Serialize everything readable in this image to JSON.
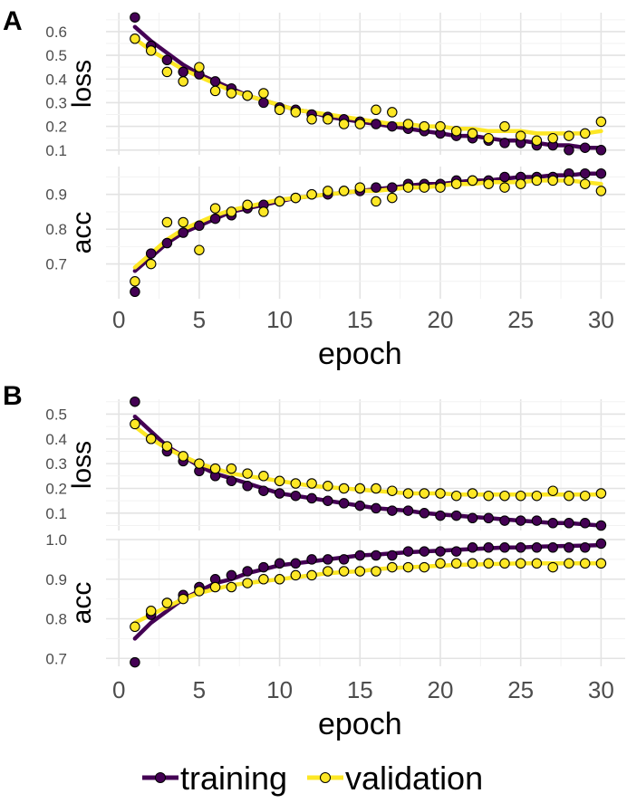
{
  "chart_data": [
    {
      "type": "scatter",
      "panel": "A",
      "xlabel": "epoch",
      "xticks": [
        0,
        5,
        10,
        15,
        20,
        25,
        30
      ],
      "xlim": [
        -0.8,
        31.5
      ],
      "series": [
        {
          "name": "training",
          "color": "#440154"
        },
        {
          "name": "validation",
          "color": "#FDE725"
        }
      ],
      "facets": [
        {
          "label": "loss",
          "ylim": [
            0.08,
            0.68
          ],
          "yticks": [
            0.1,
            0.2,
            0.3,
            0.4,
            0.5,
            0.6
          ],
          "ytick_labels": [
            "0.1",
            "0.2",
            "0.3",
            "0.4",
            "0.5",
            "0.6"
          ],
          "x": [
            1,
            2,
            3,
            4,
            5,
            6,
            7,
            8,
            9,
            10,
            11,
            12,
            13,
            14,
            15,
            16,
            17,
            18,
            19,
            20,
            21,
            22,
            23,
            24,
            25,
            26,
            27,
            28,
            29,
            30
          ],
          "training": [
            0.66,
            0.54,
            0.48,
            0.43,
            0.42,
            0.39,
            0.36,
            0.33,
            0.3,
            0.28,
            0.27,
            0.25,
            0.24,
            0.23,
            0.22,
            0.21,
            0.2,
            0.19,
            0.18,
            0.17,
            0.16,
            0.15,
            0.14,
            0.13,
            0.13,
            0.12,
            0.12,
            0.1,
            0.11,
            0.1
          ],
          "validation": [
            0.57,
            0.52,
            0.43,
            0.39,
            0.45,
            0.35,
            0.34,
            0.33,
            0.34,
            0.27,
            0.26,
            0.23,
            0.23,
            0.21,
            0.21,
            0.27,
            0.26,
            0.21,
            0.2,
            0.2,
            0.18,
            0.17,
            0.15,
            0.2,
            0.16,
            0.14,
            0.15,
            0.16,
            0.17,
            0.22
          ],
          "training_fit": [
            0.62,
            0.56,
            0.51,
            0.46,
            0.42,
            0.39,
            0.36,
            0.33,
            0.31,
            0.29,
            0.27,
            0.26,
            0.24,
            0.23,
            0.22,
            0.21,
            0.2,
            0.19,
            0.18,
            0.17,
            0.16,
            0.16,
            0.15,
            0.14,
            0.14,
            0.13,
            0.12,
            0.12,
            0.11,
            0.11
          ],
          "validation_fit": [
            0.57,
            0.52,
            0.48,
            0.44,
            0.41,
            0.38,
            0.35,
            0.33,
            0.31,
            0.29,
            0.27,
            0.26,
            0.25,
            0.24,
            0.23,
            0.22,
            0.21,
            0.21,
            0.2,
            0.2,
            0.19,
            0.19,
            0.18,
            0.18,
            0.18,
            0.17,
            0.17,
            0.17,
            0.17,
            0.18
          ]
        },
        {
          "label": "acc",
          "ylim": [
            0.6,
            0.98
          ],
          "yticks": [
            0.7,
            0.8,
            0.9
          ],
          "ytick_labels": [
            "0.7",
            "0.8",
            "0.9"
          ],
          "x": [
            1,
            2,
            3,
            4,
            5,
            6,
            7,
            8,
            9,
            10,
            11,
            12,
            13,
            14,
            15,
            16,
            17,
            18,
            19,
            20,
            21,
            22,
            23,
            24,
            25,
            26,
            27,
            28,
            29,
            30
          ],
          "training": [
            0.62,
            0.73,
            0.76,
            0.79,
            0.81,
            0.83,
            0.84,
            0.86,
            0.87,
            0.88,
            0.89,
            0.9,
            0.9,
            0.91,
            0.91,
            0.92,
            0.92,
            0.93,
            0.93,
            0.93,
            0.94,
            0.94,
            0.94,
            0.95,
            0.95,
            0.95,
            0.95,
            0.96,
            0.96,
            0.96
          ],
          "validation": [
            0.65,
            0.7,
            0.82,
            0.82,
            0.74,
            0.86,
            0.85,
            0.87,
            0.85,
            0.88,
            0.89,
            0.9,
            0.91,
            0.91,
            0.92,
            0.88,
            0.89,
            0.92,
            0.92,
            0.92,
            0.93,
            0.94,
            0.93,
            0.92,
            0.93,
            0.94,
            0.94,
            0.94,
            0.93,
            0.91
          ],
          "training_fit": [
            0.68,
            0.72,
            0.76,
            0.79,
            0.81,
            0.83,
            0.85,
            0.86,
            0.87,
            0.88,
            0.89,
            0.895,
            0.9,
            0.905,
            0.91,
            0.915,
            0.92,
            0.925,
            0.93,
            0.93,
            0.935,
            0.94,
            0.94,
            0.945,
            0.95,
            0.95,
            0.955,
            0.955,
            0.96,
            0.96
          ],
          "validation_fit": [
            0.69,
            0.73,
            0.77,
            0.8,
            0.82,
            0.84,
            0.855,
            0.865,
            0.875,
            0.885,
            0.89,
            0.895,
            0.9,
            0.905,
            0.91,
            0.91,
            0.915,
            0.92,
            0.92,
            0.925,
            0.93,
            0.93,
            0.935,
            0.935,
            0.935,
            0.94,
            0.94,
            0.94,
            0.935,
            0.93
          ]
        }
      ]
    },
    {
      "type": "scatter",
      "panel": "B",
      "xlabel": "epoch",
      "xticks": [
        0,
        5,
        10,
        15,
        20,
        25,
        30
      ],
      "xlim": [
        -0.8,
        31.5
      ],
      "series": [
        {
          "name": "training",
          "color": "#440154"
        },
        {
          "name": "validation",
          "color": "#FDE725"
        }
      ],
      "facets": [
        {
          "label": "loss",
          "ylim": [
            0.03,
            0.56
          ],
          "yticks": [
            0.1,
            0.2,
            0.3,
            0.4,
            0.5
          ],
          "ytick_labels": [
            "0.1",
            "0.2",
            "0.3",
            "0.4",
            "0.5"
          ],
          "x": [
            1,
            2,
            3,
            4,
            5,
            6,
            7,
            8,
            9,
            10,
            11,
            12,
            13,
            14,
            15,
            16,
            17,
            18,
            19,
            20,
            21,
            22,
            23,
            24,
            25,
            26,
            27,
            28,
            29,
            30
          ],
          "training": [
            0.55,
            0.4,
            0.35,
            0.31,
            0.27,
            0.25,
            0.23,
            0.21,
            0.19,
            0.18,
            0.17,
            0.16,
            0.15,
            0.14,
            0.13,
            0.12,
            0.11,
            0.11,
            0.1,
            0.09,
            0.09,
            0.08,
            0.08,
            0.07,
            0.07,
            0.07,
            0.06,
            0.06,
            0.06,
            0.05
          ],
          "validation": [
            0.46,
            0.4,
            0.37,
            0.33,
            0.3,
            0.28,
            0.28,
            0.26,
            0.25,
            0.23,
            0.22,
            0.22,
            0.21,
            0.2,
            0.2,
            0.2,
            0.19,
            0.18,
            0.18,
            0.18,
            0.17,
            0.18,
            0.17,
            0.17,
            0.17,
            0.17,
            0.19,
            0.17,
            0.17,
            0.18
          ],
          "training_fit": [
            0.49,
            0.43,
            0.37,
            0.33,
            0.29,
            0.26,
            0.24,
            0.22,
            0.2,
            0.18,
            0.17,
            0.16,
            0.15,
            0.14,
            0.13,
            0.12,
            0.115,
            0.11,
            0.1,
            0.095,
            0.09,
            0.085,
            0.08,
            0.075,
            0.07,
            0.065,
            0.06,
            0.06,
            0.055,
            0.05
          ],
          "validation_fit": [
            0.45,
            0.4,
            0.36,
            0.33,
            0.3,
            0.28,
            0.26,
            0.25,
            0.24,
            0.23,
            0.22,
            0.21,
            0.205,
            0.2,
            0.195,
            0.19,
            0.185,
            0.18,
            0.18,
            0.18,
            0.175,
            0.175,
            0.175,
            0.175,
            0.175,
            0.175,
            0.175,
            0.175,
            0.175,
            0.175
          ]
        },
        {
          "label": "acc",
          "ylim": [
            0.68,
            1.0
          ],
          "yticks": [
            0.7,
            0.8,
            0.9,
            1.0
          ],
          "ytick_labels": [
            "0.7",
            "0.8",
            "0.9",
            "1.0"
          ],
          "x": [
            1,
            2,
            3,
            4,
            5,
            6,
            7,
            8,
            9,
            10,
            11,
            12,
            13,
            14,
            15,
            16,
            17,
            18,
            19,
            20,
            21,
            22,
            23,
            24,
            25,
            26,
            27,
            28,
            29,
            30
          ],
          "training": [
            0.69,
            0.81,
            0.84,
            0.86,
            0.88,
            0.9,
            0.91,
            0.92,
            0.93,
            0.94,
            0.94,
            0.95,
            0.95,
            0.95,
            0.96,
            0.96,
            0.96,
            0.97,
            0.97,
            0.97,
            0.97,
            0.98,
            0.98,
            0.98,
            0.98,
            0.98,
            0.98,
            0.98,
            0.98,
            0.99
          ],
          "validation": [
            0.78,
            0.82,
            0.84,
            0.85,
            0.87,
            0.88,
            0.88,
            0.89,
            0.9,
            0.9,
            0.91,
            0.91,
            0.92,
            0.92,
            0.92,
            0.92,
            0.93,
            0.93,
            0.93,
            0.94,
            0.94,
            0.94,
            0.94,
            0.94,
            0.94,
            0.94,
            0.93,
            0.94,
            0.94,
            0.94
          ],
          "training_fit": [
            0.75,
            0.79,
            0.82,
            0.85,
            0.87,
            0.89,
            0.9,
            0.915,
            0.925,
            0.935,
            0.94,
            0.945,
            0.95,
            0.955,
            0.96,
            0.962,
            0.965,
            0.968,
            0.97,
            0.972,
            0.974,
            0.976,
            0.978,
            0.98,
            0.98,
            0.982,
            0.983,
            0.984,
            0.985,
            0.986
          ],
          "validation_fit": [
            0.79,
            0.81,
            0.83,
            0.85,
            0.865,
            0.875,
            0.885,
            0.89,
            0.895,
            0.9,
            0.905,
            0.91,
            0.915,
            0.918,
            0.92,
            0.925,
            0.928,
            0.93,
            0.932,
            0.934,
            0.936,
            0.937,
            0.938,
            0.939,
            0.94,
            0.94,
            0.94,
            0.94,
            0.94,
            0.94
          ]
        }
      ]
    }
  ],
  "legend": {
    "position": "bottom",
    "items": [
      {
        "label": "training",
        "color": "#440154"
      },
      {
        "label": "validation",
        "color": "#FDE725"
      }
    ]
  }
}
